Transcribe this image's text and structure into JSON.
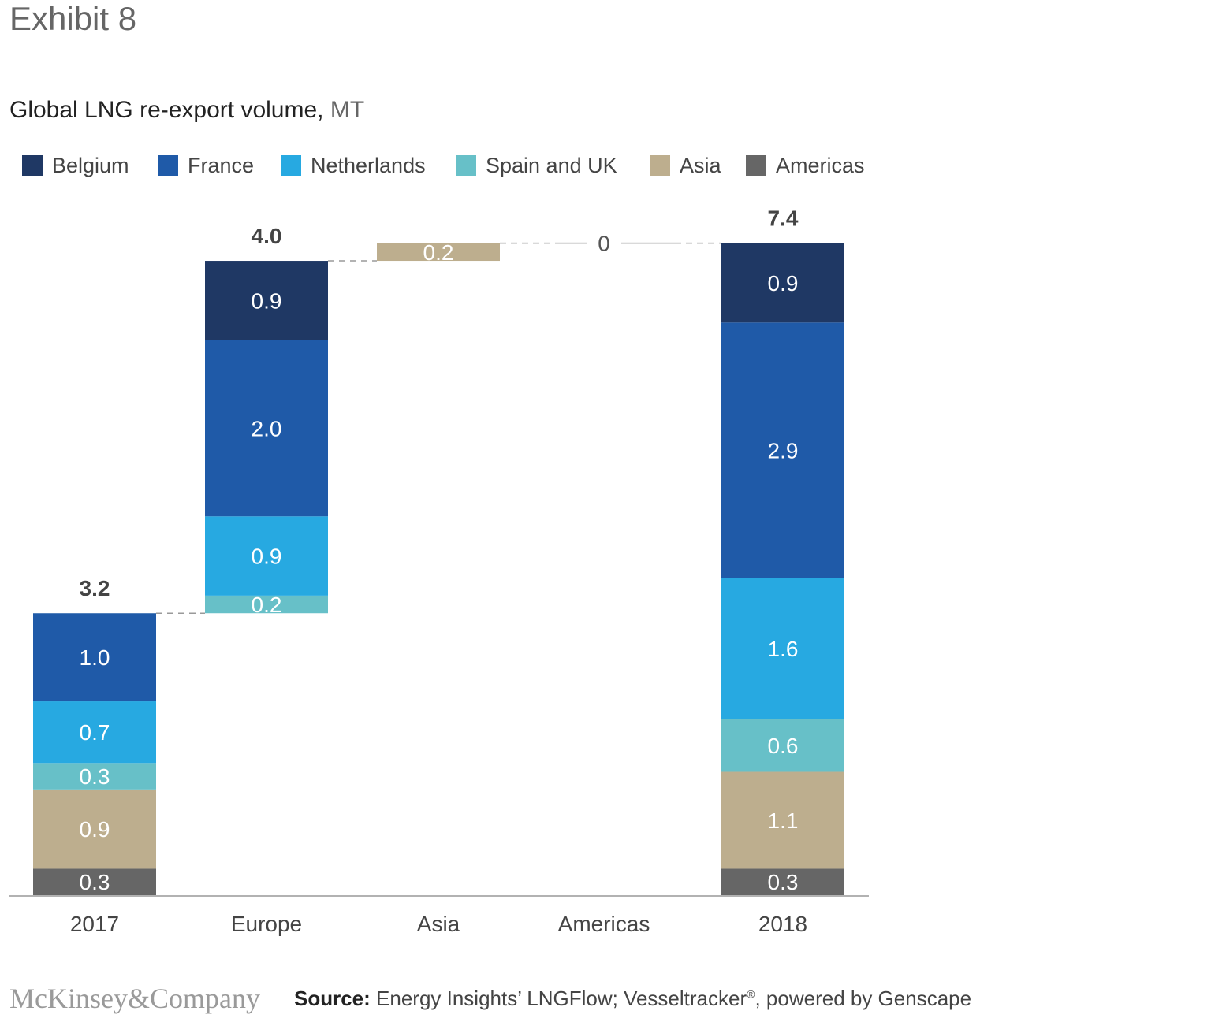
{
  "exhibit": "Exhibit 8",
  "title": {
    "main": "Global LNG re-export volume,",
    "unit": " MT"
  },
  "legend": [
    {
      "name": "Belgium",
      "color": "#1f3864"
    },
    {
      "name": "France",
      "color": "#1f5aa8"
    },
    {
      "name": "Netherlands",
      "color": "#27a9e1"
    },
    {
      "name": "Spain and UK",
      "color": "#67c0c8"
    },
    {
      "name": "Asia",
      "color": "#bdae8e"
    },
    {
      "name": "Americas",
      "color": "#666666"
    }
  ],
  "chart_data": {
    "type": "bar",
    "subtype": "waterfall-stacked",
    "title": "Global LNG re-export volume, MT",
    "categories": [
      "2017",
      "Europe",
      "Asia",
      "Americas",
      "2018"
    ],
    "ylim": [
      0,
      7.4
    ],
    "bars": [
      {
        "category": "2017",
        "base": 0,
        "total_label": "3.2",
        "segments": [
          {
            "series": "Americas",
            "value": 0.3,
            "label": "0.3"
          },
          {
            "series": "Asia",
            "value": 0.9,
            "label": "0.9"
          },
          {
            "series": "Spain and UK",
            "value": 0.3,
            "label": "0.3"
          },
          {
            "series": "Netherlands",
            "value": 0.7,
            "label": "0.7"
          },
          {
            "series": "France",
            "value": 1.0,
            "label": "1.0"
          }
        ]
      },
      {
        "category": "Europe",
        "base": 3.2,
        "total_label": "4.0",
        "segments": [
          {
            "series": "Spain and UK",
            "value": 0.2,
            "label": "0.2"
          },
          {
            "series": "Netherlands",
            "value": 0.9,
            "label": "0.9"
          },
          {
            "series": "France",
            "value": 2.0,
            "label": "2.0"
          },
          {
            "series": "Belgium",
            "value": 0.9,
            "label": "0.9"
          }
        ]
      },
      {
        "category": "Asia",
        "base": 7.2,
        "total_label": "",
        "segments": [
          {
            "series": "Asia",
            "value": 0.2,
            "label": "0.2"
          }
        ]
      },
      {
        "category": "Americas",
        "base": 7.4,
        "total_label": "0",
        "segments": []
      },
      {
        "category": "2018",
        "base": 0,
        "total_label": "7.4",
        "segments": [
          {
            "series": "Americas",
            "value": 0.3,
            "label": "0.3"
          },
          {
            "series": "Asia",
            "value": 1.1,
            "label": "1.1"
          },
          {
            "series": "Spain and UK",
            "value": 0.6,
            "label": "0.6"
          },
          {
            "series": "Netherlands",
            "value": 1.6,
            "label": "1.6"
          },
          {
            "series": "France",
            "value": 2.9,
            "label": "2.9"
          },
          {
            "series": "Belgium",
            "value": 0.9,
            "label": "0.9"
          }
        ]
      }
    ]
  },
  "footer": {
    "brand": "McKinsey&Company",
    "source_label": "Source:",
    "source_text": " Energy Insights’ LNGFlow; Vesseltracker",
    "registered": "®",
    "source_tail": ", powered by Genscape"
  }
}
